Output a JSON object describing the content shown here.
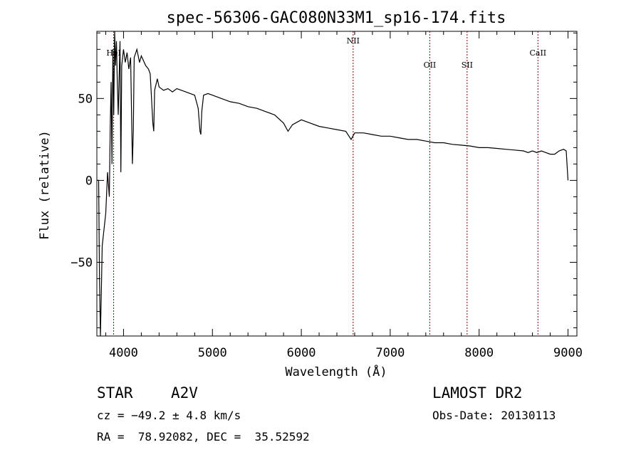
{
  "chart_data": {
    "type": "line",
    "title": "spec-56306-GAC080N33M1_sp16-174.fits",
    "xlabel": "Wavelength (Å)",
    "ylabel": "Flux (relative)",
    "xlim": [
      3700,
      9100
    ],
    "ylim": [
      -95,
      91
    ],
    "x_ticks": [
      4000,
      5000,
      6000,
      7000,
      8000,
      9000
    ],
    "y_ticks": [
      -50,
      0,
      50
    ],
    "grid": false,
    "series": [
      {
        "values": [
          [
            3700,
            0
          ],
          [
            3720,
            0
          ],
          [
            3730,
            -60
          ],
          [
            3740,
            -95
          ],
          [
            3750,
            -70
          ],
          [
            3760,
            -40
          ],
          [
            3780,
            -30
          ],
          [
            3800,
            -20
          ],
          [
            3820,
            5
          ],
          [
            3840,
            -10
          ],
          [
            3850,
            30
          ],
          [
            3860,
            60
          ],
          [
            3870,
            10
          ],
          [
            3880,
            80
          ],
          [
            3890,
            40
          ],
          [
            3900,
            91
          ],
          [
            3910,
            70
          ],
          [
            3920,
            85
          ],
          [
            3930,
            60
          ],
          [
            3940,
            40
          ],
          [
            3960,
            85
          ],
          [
            3970,
            5
          ],
          [
            3980,
            70
          ],
          [
            4000,
            80
          ],
          [
            4020,
            72
          ],
          [
            4040,
            78
          ],
          [
            4060,
            68
          ],
          [
            4080,
            75
          ],
          [
            4100,
            10
          ],
          [
            4110,
            30
          ],
          [
            4120,
            75
          ],
          [
            4150,
            80
          ],
          [
            4180,
            72
          ],
          [
            4200,
            76
          ],
          [
            4250,
            70
          ],
          [
            4280,
            68
          ],
          [
            4300,
            65
          ],
          [
            4330,
            35
          ],
          [
            4340,
            30
          ],
          [
            4350,
            55
          ],
          [
            4380,
            62
          ],
          [
            4400,
            57
          ],
          [
            4450,
            55
          ],
          [
            4500,
            56
          ],
          [
            4550,
            54
          ],
          [
            4600,
            56
          ],
          [
            4650,
            55
          ],
          [
            4700,
            54
          ],
          [
            4750,
            53
          ],
          [
            4800,
            52
          ],
          [
            4840,
            44
          ],
          [
            4860,
            30
          ],
          [
            4870,
            28
          ],
          [
            4880,
            42
          ],
          [
            4900,
            52
          ],
          [
            4950,
            53
          ],
          [
            5000,
            52
          ],
          [
            5100,
            50
          ],
          [
            5200,
            48
          ],
          [
            5300,
            47
          ],
          [
            5400,
            45
          ],
          [
            5500,
            44
          ],
          [
            5600,
            42
          ],
          [
            5700,
            40
          ],
          [
            5800,
            35
          ],
          [
            5850,
            30
          ],
          [
            5900,
            34
          ],
          [
            6000,
            37
          ],
          [
            6100,
            35
          ],
          [
            6200,
            33
          ],
          [
            6300,
            32
          ],
          [
            6400,
            31
          ],
          [
            6500,
            30
          ],
          [
            6560,
            25
          ],
          [
            6570,
            26
          ],
          [
            6600,
            29
          ],
          [
            6700,
            29
          ],
          [
            6800,
            28
          ],
          [
            6900,
            27
          ],
          [
            7000,
            27
          ],
          [
            7100,
            26
          ],
          [
            7200,
            25
          ],
          [
            7300,
            25
          ],
          [
            7400,
            24
          ],
          [
            7500,
            23
          ],
          [
            7600,
            23
          ],
          [
            7700,
            22
          ],
          [
            7800,
            21.5
          ],
          [
            7900,
            21
          ],
          [
            8000,
            20
          ],
          [
            8100,
            20
          ],
          [
            8200,
            19.5
          ],
          [
            8300,
            19
          ],
          [
            8400,
            18.5
          ],
          [
            8500,
            18
          ],
          [
            8550,
            17
          ],
          [
            8600,
            18
          ],
          [
            8650,
            17
          ],
          [
            8700,
            18
          ],
          [
            8750,
            17
          ],
          [
            8800,
            16
          ],
          [
            8850,
            16
          ],
          [
            8900,
            18
          ],
          [
            8950,
            19
          ],
          [
            8980,
            18
          ],
          [
            9000,
            0
          ]
        ]
      }
    ],
    "lines": [
      {
        "label": "HeI",
        "x": 3889
      },
      {
        "label": "NII",
        "x": 6583
      },
      {
        "label": "OII",
        "x": 7445
      },
      {
        "label": "SII",
        "x": 7865
      },
      {
        "label": "CaII",
        "x": 8662
      }
    ]
  },
  "footer": {
    "class_label": "STAR",
    "subclass": "A2V",
    "survey": "LAMOST DR2",
    "cz": "cz = −49.2 ± 4.8 km/s",
    "obs_date": "Obs-Date: 20130113",
    "radec": "RA =  78.92082, DEC =  35.52592"
  }
}
